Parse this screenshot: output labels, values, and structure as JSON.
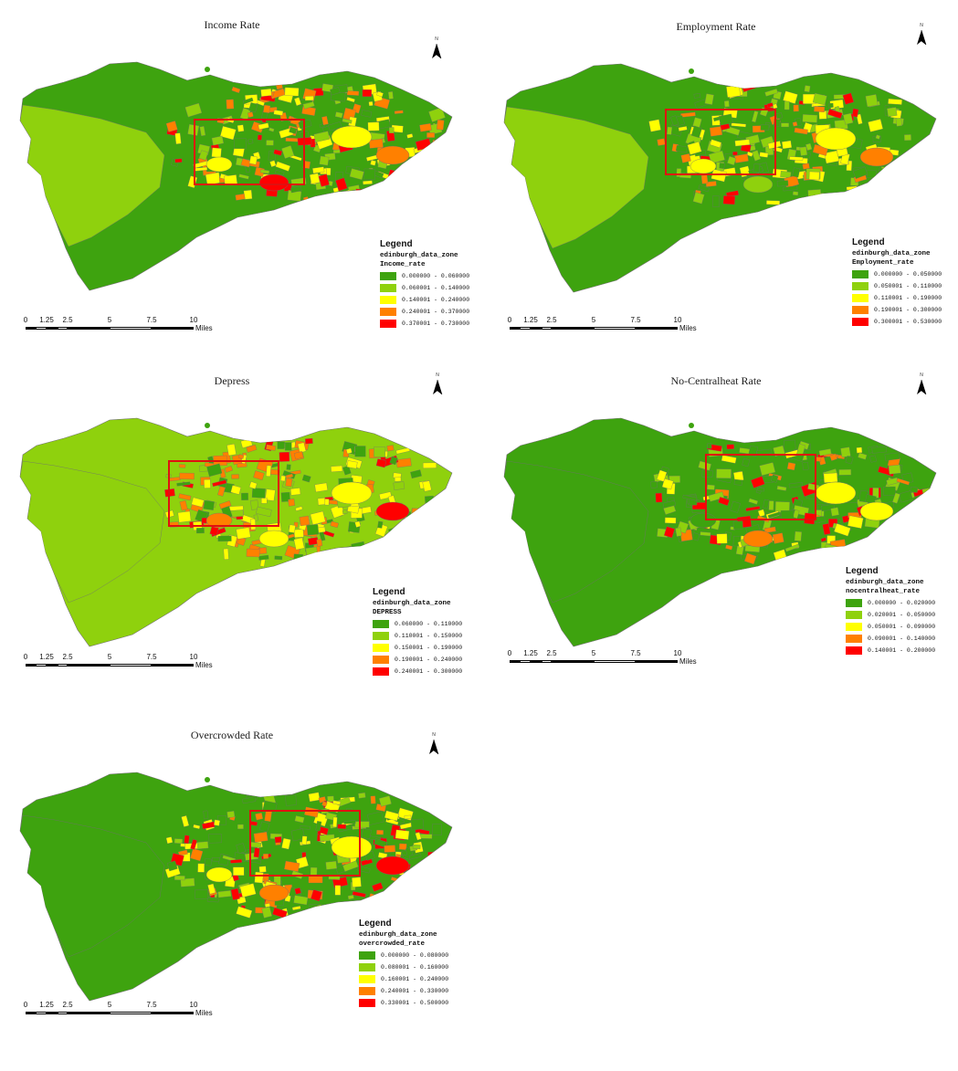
{
  "colors": {
    "class1": "#3ea30f",
    "class2": "#8fd10d",
    "class3": "#ffff00",
    "class4": "#ff8000",
    "class5": "#ff0000",
    "box": "#e01010",
    "boundary": "#707070"
  },
  "north_arrow": {
    "label": "N"
  },
  "scale_bar": {
    "ticks": [
      "0",
      "1.25",
      "2.5",
      "5",
      "7.5",
      "10"
    ],
    "unit": "Miles"
  },
  "maps": [
    {
      "title": "Income Rate",
      "legend": {
        "title": "Legend",
        "layer": "edinburgh_data_zone",
        "field": "Income_rate",
        "classes": [
          "0.000000 - 0.060000",
          "0.060001 - 0.140000",
          "0.140001 - 0.240000",
          "0.240001 - 0.370000",
          "0.370001 - 0.730000"
        ]
      }
    },
    {
      "title": "Employment Rate",
      "legend": {
        "title": "Legend",
        "layer": "edinburgh_data_zone",
        "field": "Employment_rate",
        "classes": [
          "0.000000 - 0.050000",
          "0.050001 - 0.110000",
          "0.110001 - 0.190000",
          "0.190001 - 0.300000",
          "0.300001 - 0.530000"
        ]
      }
    },
    {
      "title": "Depress",
      "legend": {
        "title": "Legend",
        "layer": "edinburgh_data_zone",
        "field": "DEPRESS",
        "classes": [
          "0.060000 - 0.110000",
          "0.110001 - 0.150000",
          "0.150001 - 0.190000",
          "0.190001 - 0.240000",
          "0.240001 - 0.300000"
        ]
      }
    },
    {
      "title": "No-Centralheat Rate",
      "legend": {
        "title": "Legend",
        "layer": "edinburgh_data_zone",
        "field": "nocentralheat_rate",
        "classes": [
          "0.000000 - 0.020000",
          "0.020001 - 0.050000",
          "0.050001 - 0.090000",
          "0.090001 - 0.140000",
          "0.140001 - 0.200000"
        ]
      }
    },
    {
      "title": "Overcrowded Rate",
      "legend": {
        "title": "Legend",
        "layer": "edinburgh_data_zone",
        "field": "overcrowded_rate",
        "classes": [
          "0.000000 - 0.080000",
          "0.080001 - 0.160000",
          "0.160001 - 0.240000",
          "0.240001 - 0.330000",
          "0.330001 - 0.500000"
        ]
      }
    }
  ]
}
